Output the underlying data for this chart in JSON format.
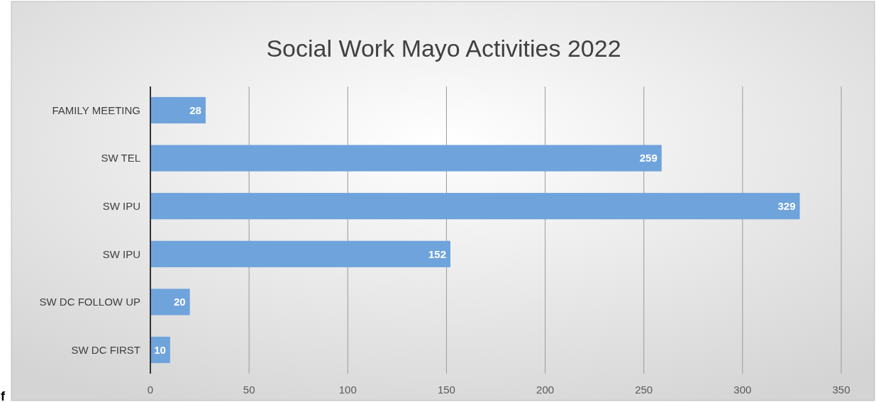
{
  "chart_data": {
    "type": "bar",
    "orientation": "horizontal",
    "title": "Social Work Mayo Activities 2022",
    "categories": [
      "FAMILY MEETING",
      "SW TEL",
      "SW IPU",
      "SW IPU",
      "SW DC FOLLOW UP",
      "SW DC FIRST"
    ],
    "values": [
      28,
      259,
      329,
      152,
      20,
      10
    ],
    "color": "#6fa3dc",
    "xlim": [
      0,
      350
    ],
    "xticks": [
      0,
      50,
      100,
      150,
      200,
      250,
      300,
      350
    ],
    "grid": "x",
    "data_labels": true,
    "annotations": [
      "f"
    ]
  }
}
